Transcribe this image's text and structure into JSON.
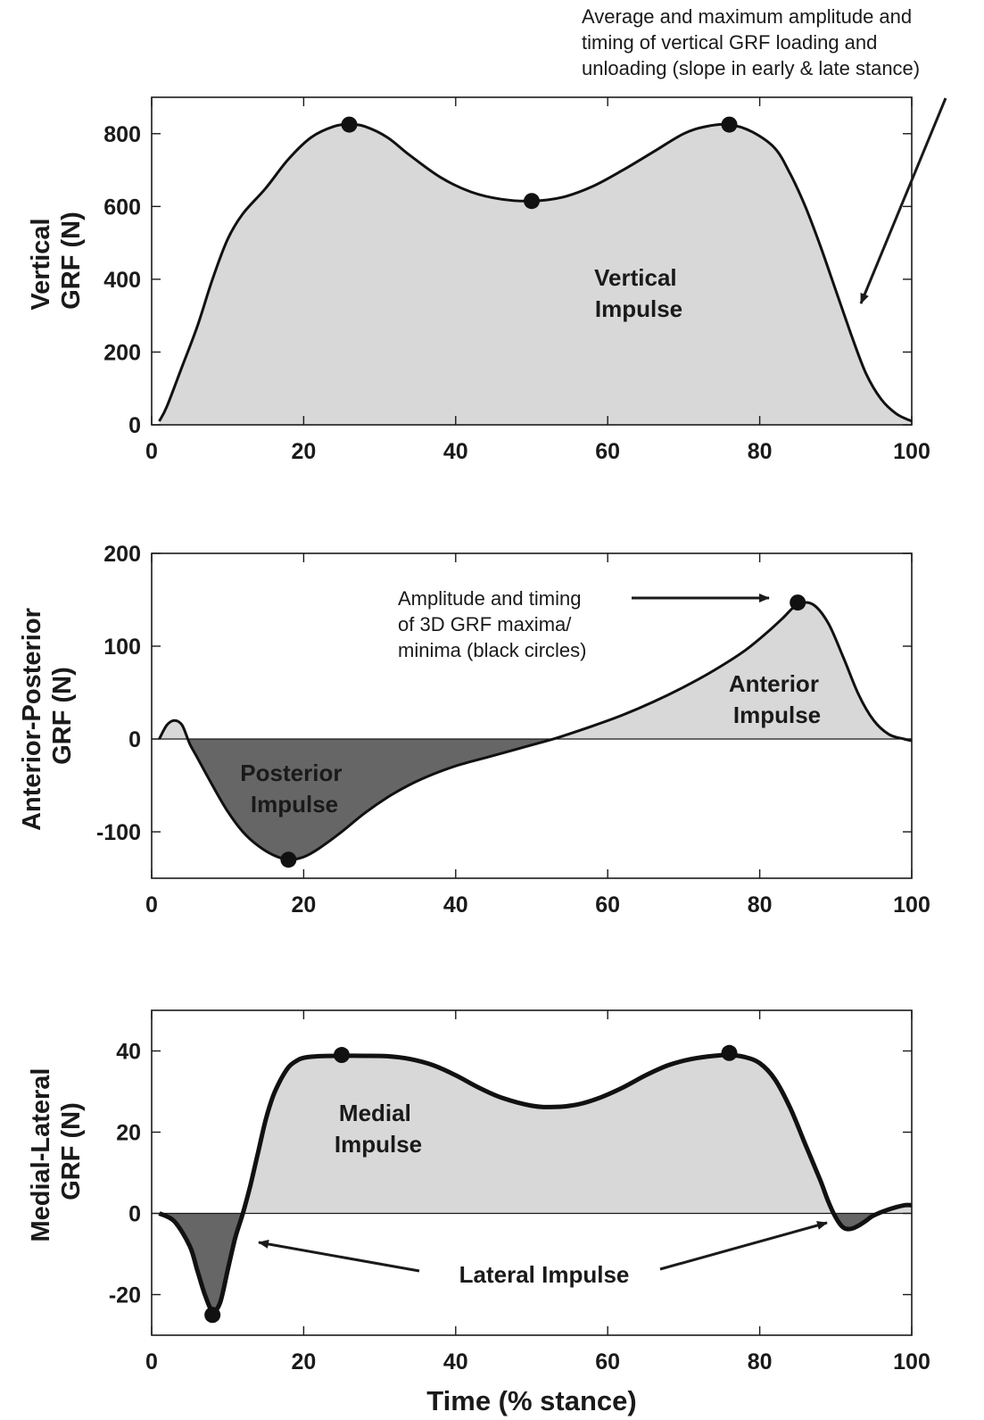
{
  "chart_data": [
    {
      "type": "area",
      "ylabel_lines": [
        "Vertical",
        "GRF (N)"
      ],
      "xlim": [
        0,
        100
      ],
      "ylim": [
        0,
        900
      ],
      "xticks": [
        0,
        20,
        40,
        60,
        80,
        100
      ],
      "yticks": [
        0,
        200,
        400,
        600,
        800
      ],
      "grid": false,
      "x": [
        1,
        2,
        4,
        6,
        8,
        10,
        12,
        15,
        18,
        21,
        24,
        26,
        28,
        31,
        34,
        38,
        42,
        46,
        50,
        54,
        58,
        62,
        66,
        70,
        73,
        76,
        79,
        82,
        84,
        86,
        88,
        90,
        92,
        94,
        96,
        98,
        100
      ],
      "values": [
        10,
        50,
        160,
        270,
        400,
        510,
        580,
        650,
        730,
        790,
        820,
        825,
        820,
        790,
        740,
        680,
        640,
        620,
        615,
        625,
        655,
        700,
        750,
        800,
        820,
        825,
        805,
        760,
        690,
        600,
        490,
        370,
        250,
        140,
        70,
        30,
        10
      ],
      "markers": [
        {
          "x": 26,
          "y": 825
        },
        {
          "x": 50,
          "y": 615
        },
        {
          "x": 76,
          "y": 825
        }
      ],
      "regions": [
        {
          "lines": [
            "Vertical",
            "Impulse"
          ],
          "x": 64,
          "y": 420
        }
      ],
      "annotations": [
        {
          "lines": [
            "Average and maximum amplitude and",
            "timing of vertical GRF loading and",
            "unloading (slope in early & late stance)"
          ]
        }
      ]
    },
    {
      "type": "area",
      "ylabel_lines": [
        "Anterior-Posterior",
        "GRF (N)"
      ],
      "xlim": [
        0,
        100
      ],
      "ylim": [
        -150,
        200
      ],
      "xticks": [
        0,
        20,
        40,
        60,
        80,
        100
      ],
      "yticks": [
        -100,
        0,
        100,
        200
      ],
      "grid": false,
      "x": [
        1,
        2,
        3,
        4,
        5,
        6,
        8,
        10,
        12,
        14,
        16,
        18,
        20,
        22,
        25,
        28,
        31,
        34,
        37,
        40,
        44,
        48,
        52,
        54,
        58,
        62,
        66,
        70,
        74,
        78,
        81,
        83,
        85,
        87,
        89,
        91,
        93,
        95,
        97,
        99,
        100
      ],
      "values": [
        0,
        15,
        20,
        15,
        -5,
        -20,
        -50,
        -78,
        -100,
        -115,
        -125,
        -130,
        -127,
        -118,
        -100,
        -80,
        -63,
        -49,
        -38,
        -29,
        -20,
        -11,
        -2,
        3,
        14,
        26,
        40,
        56,
        74,
        95,
        115,
        130,
        145,
        145,
        125,
        88,
        48,
        20,
        5,
        0,
        -2
      ],
      "markers": [
        {
          "x": 18,
          "y": -130
        },
        {
          "x": 85,
          "y": 147
        }
      ],
      "regions": [
        {
          "lines": [
            "Posterior",
            "Impulse"
          ],
          "x": 12,
          "y": -36
        },
        {
          "lines": [
            "Anterior",
            "Impulse"
          ],
          "x": 76,
          "y": 64
        }
      ],
      "annotations": [
        {
          "lines": [
            "Amplitude and timing",
            "of 3D GRF maxima/",
            "minima (black circles)"
          ]
        }
      ]
    },
    {
      "type": "area",
      "ylabel_lines": [
        "Medial-Lateral",
        "GRF (N)"
      ],
      "xlabel": "Time (% stance)",
      "xlim": [
        0,
        100
      ],
      "ylim": [
        -30,
        50
      ],
      "xticks": [
        0,
        20,
        40,
        60,
        80,
        100
      ],
      "yticks": [
        -20,
        0,
        20,
        40
      ],
      "grid": false,
      "x": [
        1,
        3,
        5,
        6,
        7,
        8,
        9,
        10,
        11,
        12,
        13,
        14,
        15,
        16,
        17,
        18,
        19,
        20,
        22,
        25,
        28,
        31,
        34,
        37,
        40,
        43,
        46,
        50,
        53,
        56,
        59,
        62,
        65,
        68,
        71,
        74,
        76,
        78,
        80,
        82,
        84,
        86,
        88,
        89,
        90,
        91,
        92,
        93,
        94,
        95,
        97,
        99,
        100
      ],
      "values": [
        0,
        -2,
        -8,
        -14,
        -20,
        -24,
        -22,
        -14,
        -6,
        0,
        7,
        15,
        23,
        29,
        33,
        36,
        37.5,
        38.3,
        38.7,
        38.8,
        38.8,
        38.7,
        38,
        36.5,
        34,
        31,
        28.5,
        26.5,
        26.2,
        26.8,
        28.5,
        31,
        34,
        36.5,
        38,
        38.8,
        39,
        38.5,
        37,
        33,
        26,
        17,
        8,
        3,
        -1,
        -3.5,
        -3.8,
        -3,
        -1.8,
        -0.5,
        1,
        2,
        2
      ],
      "markers": [
        {
          "x": 8,
          "y": -25
        },
        {
          "x": 25,
          "y": 39
        },
        {
          "x": 76,
          "y": 39.5
        }
      ],
      "regions": [
        {
          "lines": [
            "Medial",
            "Impulse"
          ],
          "x": 23,
          "y": 22
        }
      ],
      "annotations": [
        {
          "lines": [
            "Lateral Impulse"
          ]
        }
      ]
    }
  ]
}
